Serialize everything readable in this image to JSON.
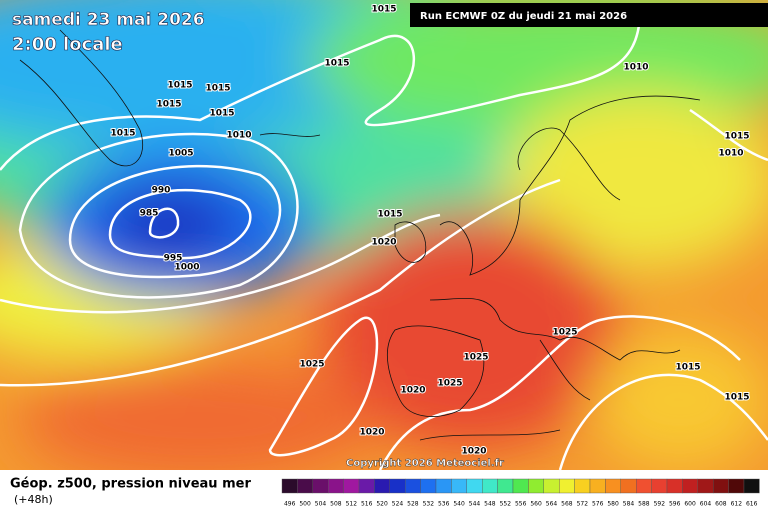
{
  "header": {
    "title": "samedi 23 mai 2026",
    "subtitle": "2:00 locale",
    "run": "Run ECMWF 0Z du jeudi 21 mai 2026"
  },
  "isobar_labels": [
    1015,
    1015,
    1015,
    1015,
    1015,
    1015,
    1010,
    1005,
    1015,
    990,
    985,
    995,
    1000,
    1015,
    1020,
    1010,
    1015,
    1010,
    1025,
    1025,
    1025,
    1020,
    1025,
    1020,
    1020,
    1015,
    1015
  ],
  "copyright": "Copyright 2026 Meteociel.fr",
  "legend": {
    "title": "Géop. z500, pression niveau mer",
    "lead_time": "(+48h)",
    "scale": [
      496,
      500,
      504,
      508,
      512,
      516,
      520,
      524,
      528,
      532,
      536,
      540,
      544,
      548,
      552,
      556,
      560,
      564,
      568,
      572,
      576,
      580,
      584,
      588,
      592,
      596,
      600,
      604,
      608,
      612,
      616
    ],
    "colors": [
      "#2b0b2b",
      "#4a0c4a",
      "#6a0f6a",
      "#8a138a",
      "#a018a0",
      "#6a1aa8",
      "#2a1ab0",
      "#1830c8",
      "#1a50e0",
      "#1e70f0",
      "#2a96f5",
      "#38b8f8",
      "#40d8f0",
      "#40e8c8",
      "#40e890",
      "#50e850",
      "#90ec30",
      "#c8f030",
      "#f0f030",
      "#f8d020",
      "#f8b020",
      "#f89020",
      "#f07020",
      "#f05030",
      "#e84030",
      "#d83028",
      "#c02020",
      "#a01818",
      "#801010",
      "#500808",
      "#101010"
    ]
  }
}
